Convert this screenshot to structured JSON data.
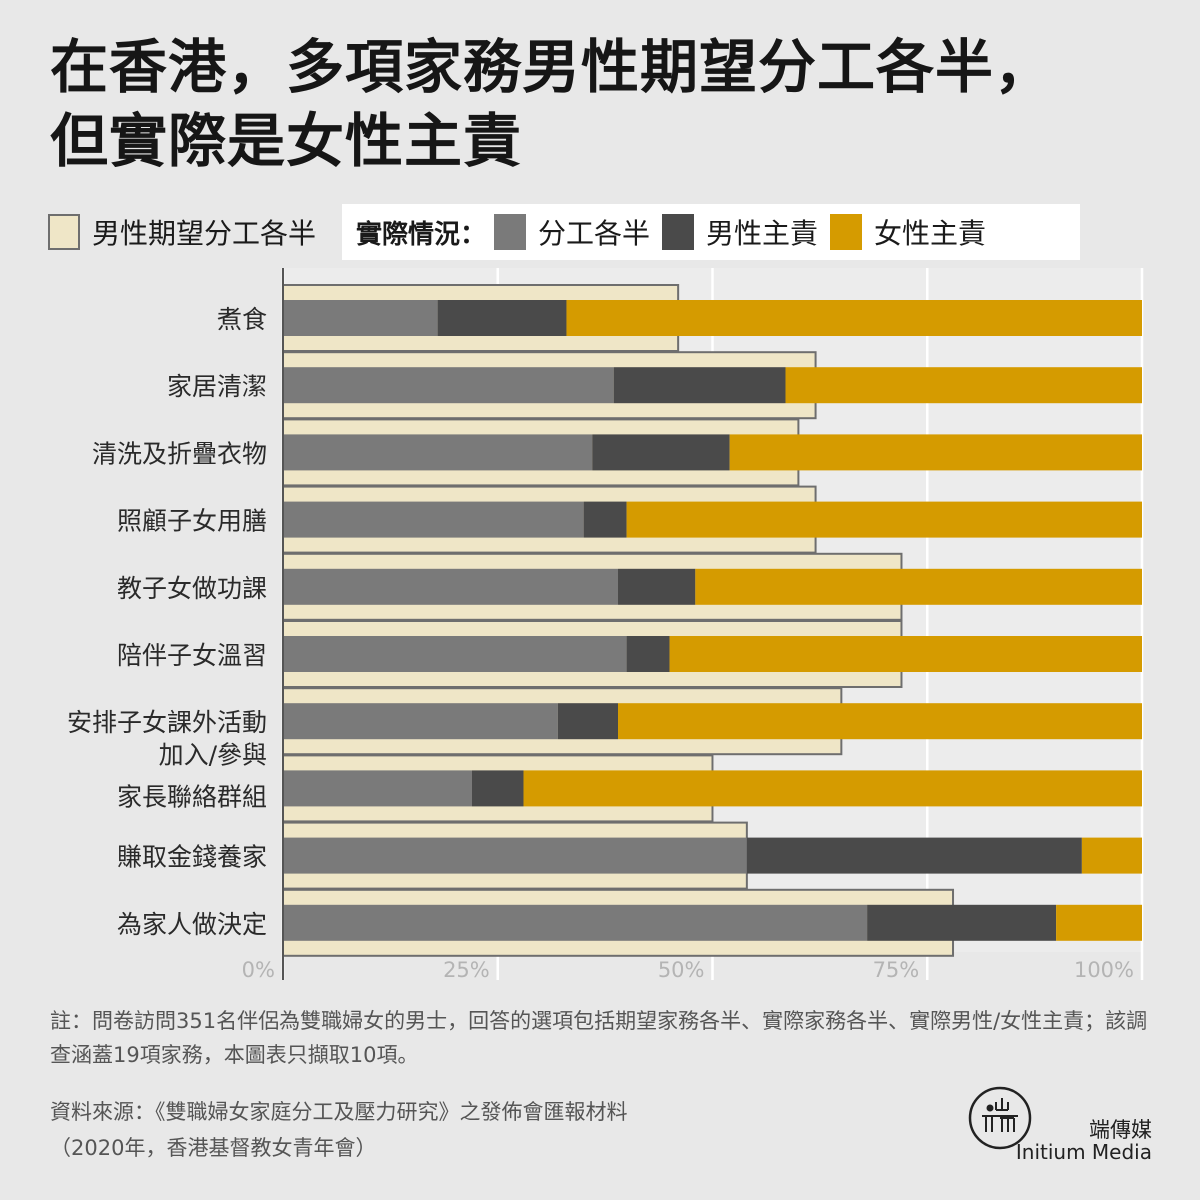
{
  "title_lines": [
    "在香港，多項家務男性期望分工各半，",
    "但實際是女性主責"
  ],
  "legend": {
    "expected_label": "男性期望分工各半",
    "actual_heading": "實際情況：",
    "items": [
      {
        "label": "分工各半",
        "color": "#7a7a7a"
      },
      {
        "label": "男性主責",
        "color": "#4a4a4a"
      },
      {
        "label": "女性主責",
        "color": "#d59b00"
      }
    ],
    "expected_color": "#efe6c7"
  },
  "chart_data": {
    "type": "bar",
    "orientation": "horizontal",
    "stacked": true,
    "categories": [
      [
        "煮食"
      ],
      [
        "家居清潔"
      ],
      [
        "清洗及折疊衣物"
      ],
      [
        "照顧子女用膳"
      ],
      [
        "教子女做功課"
      ],
      [
        "陪伴子女溫習"
      ],
      [
        "安排子女課外活動"
      ],
      [
        "加入/參與",
        "家長聯絡群組"
      ],
      [
        "賺取金錢養家"
      ],
      [
        "為家人做決定"
      ]
    ],
    "expected_half": [
      46,
      62,
      60,
      62,
      72,
      72,
      65,
      50,
      54,
      78
    ],
    "series": [
      {
        "name": "分工各半",
        "color": "#7a7a7a",
        "values": [
          18,
          38.5,
          36,
          35,
          39,
          40,
          32,
          22,
          54,
          68
        ]
      },
      {
        "name": "男性主責",
        "color": "#4a4a4a",
        "values": [
          15,
          20,
          16,
          5,
          9,
          5,
          7,
          6,
          39,
          22
        ]
      },
      {
        "name": "女性主責",
        "color": "#d59b00",
        "values": [
          67,
          41.5,
          48,
          60,
          52,
          55,
          61,
          72,
          7,
          10
        ]
      }
    ],
    "xticks": [
      "0%",
      "25%",
      "50%",
      "75%",
      "100%"
    ],
    "xlim": [
      0,
      100
    ],
    "grid": true
  },
  "footnote": "註：問卷訪問351名伴侶為雙職婦女的男士，回答的選項包括期望家務各半、實際家務各半、實際男性/女性主責；該調查涵蓋19項家務，本圖表只擷取10項。",
  "source_lines": [
    "資料來源：《雙職婦女家庭分工及壓力研究》之發佈會匯報材料",
    "（2020年，香港基督教女青年會）"
  ],
  "brand": {
    "cn": "端傳媒",
    "en": "Initium Media"
  }
}
